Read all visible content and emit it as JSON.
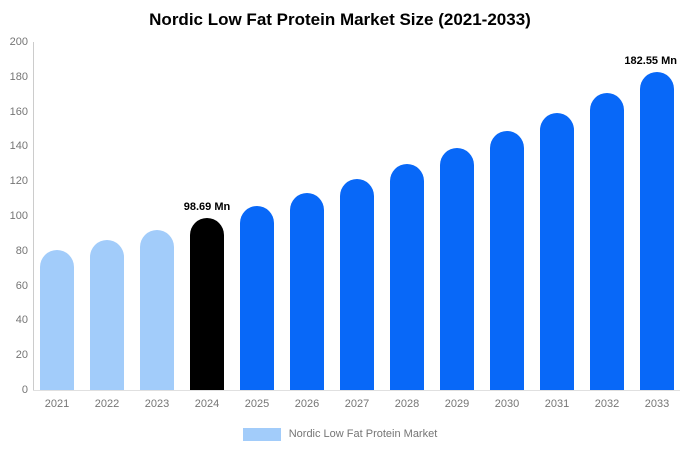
{
  "chart_data": {
    "type": "bar",
    "title": "Nordic Low Fat Protein Market Size (2021-2033)",
    "xlabel": "",
    "ylabel": "",
    "unit": "Mn",
    "categories": [
      "2021",
      "2022",
      "2023",
      "2024",
      "2025",
      "2026",
      "2027",
      "2028",
      "2029",
      "2030",
      "2031",
      "2032",
      "2033"
    ],
    "values": [
      80.4,
      86.1,
      92.2,
      98.69,
      105.7,
      113.1,
      121.1,
      129.7,
      138.9,
      148.7,
      159.2,
      170.5,
      182.55
    ],
    "data_labels": [
      "",
      "",
      "",
      "98.69 Mn",
      "",
      "",
      "",
      "",
      "",
      "",
      "",
      "",
      "182.55 Mn"
    ],
    "bar_colors": [
      "#a2ccfa",
      "#a2ccfa",
      "#a2ccfa",
      "#000000",
      "#0868f8",
      "#0868f8",
      "#0868f8",
      "#0868f8",
      "#0868f8",
      "#0868f8",
      "#0868f8",
      "#0868f8",
      "#0868f8"
    ],
    "ylim": [
      0,
      200
    ],
    "yticks": [
      0,
      20,
      40,
      60,
      80,
      100,
      120,
      140,
      160,
      180,
      200
    ],
    "grid": false,
    "legend_position": "bottom"
  },
  "legend": {
    "label": "Nordic Low Fat Protein Market",
    "swatch_color": "#a2ccfa"
  },
  "colors": {
    "historical_bar": "#a2ccfa",
    "base_year_bar": "#000000",
    "forecast_bar": "#0868f8",
    "axis_line": "#cccccc",
    "baseline": "#e0e0e0",
    "tick_text": "#757575",
    "title_text": "#000000",
    "background": "#ffffff"
  }
}
